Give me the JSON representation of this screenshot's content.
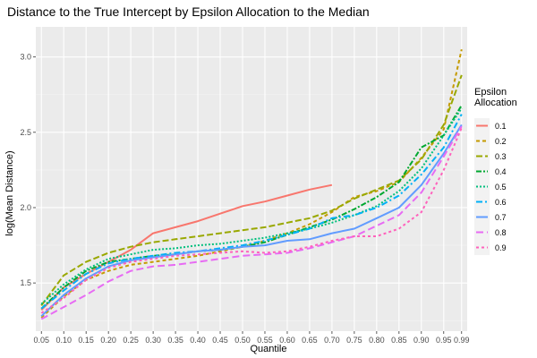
{
  "chart_data": {
    "type": "line",
    "title": "Distance to the True Intercept by Epsilon Allocation to the Median",
    "xlabel": "Quantile",
    "ylabel": "log(Mean Distance)",
    "ylim": [
      1.18,
      3.2
    ],
    "y_ticks": [
      1.5,
      2.0,
      2.5,
      3.0
    ],
    "y_tick_labels": [
      "1.5",
      "2.0",
      "2.5",
      "3.0"
    ],
    "x_tick_labels": [
      "0.05",
      "0.10",
      "0.15",
      "0.20",
      "0.25",
      "0.30",
      "0.35",
      "0.40",
      "0.45",
      "0.50",
      "0.55",
      "0.60",
      "0.65",
      "0.70",
      "0.75",
      "0.80",
      "0.85",
      "0.90",
      "0.95",
      "0.99"
    ],
    "background": "#ebebeb",
    "grid": true,
    "legend": {
      "title": "Epsilon\nAllocation",
      "placement": "right"
    },
    "series": [
      {
        "name": "0.1",
        "color": "#F8766D",
        "dash": "solid",
        "x": [
          0.05,
          0.1,
          0.15,
          0.2,
          0.25,
          0.3,
          0.35,
          0.4,
          0.45,
          0.5,
          0.55,
          0.6,
          0.65,
          0.7
        ],
        "y": [
          1.32,
          1.47,
          1.56,
          1.64,
          1.72,
          1.83,
          1.87,
          1.91,
          1.96,
          2.01,
          2.04,
          2.08,
          2.12,
          2.15
        ]
      },
      {
        "name": "0.2",
        "color": "#C49A00",
        "dash": "4,3",
        "x": [
          0.05,
          0.1,
          0.15,
          0.2,
          0.25,
          0.3,
          0.35,
          0.4,
          0.45,
          0.5,
          0.55,
          0.6,
          0.65,
          0.7,
          0.75,
          0.8,
          0.85,
          0.9,
          0.95,
          0.99
        ],
        "y": [
          1.27,
          1.41,
          1.52,
          1.58,
          1.62,
          1.64,
          1.66,
          1.68,
          1.71,
          1.74,
          1.78,
          1.83,
          1.89,
          1.97,
          2.07,
          2.11,
          2.17,
          2.33,
          2.52,
          3.05
        ]
      },
      {
        "name": "0.3",
        "color": "#99A800",
        "dash": "7,3",
        "x": [
          0.05,
          0.1,
          0.15,
          0.2,
          0.25,
          0.3,
          0.35,
          0.4,
          0.45,
          0.5,
          0.55,
          0.6,
          0.65,
          0.7,
          0.75,
          0.8,
          0.85,
          0.9,
          0.95,
          0.99
        ],
        "y": [
          1.35,
          1.55,
          1.64,
          1.7,
          1.74,
          1.77,
          1.79,
          1.81,
          1.83,
          1.85,
          1.87,
          1.9,
          1.93,
          1.98,
          2.06,
          2.12,
          2.18,
          2.32,
          2.55,
          2.88
        ]
      },
      {
        "name": "0.4",
        "color": "#00A830",
        "dash": "6,2,2,2",
        "x": [
          0.05,
          0.1,
          0.15,
          0.2,
          0.25,
          0.3,
          0.35,
          0.4,
          0.45,
          0.5,
          0.55,
          0.6,
          0.65,
          0.7,
          0.75,
          0.8,
          0.85,
          0.9,
          0.95,
          0.99
        ],
        "y": [
          1.33,
          1.47,
          1.58,
          1.64,
          1.66,
          1.68,
          1.69,
          1.71,
          1.72,
          1.74,
          1.77,
          1.82,
          1.87,
          1.92,
          1.99,
          2.07,
          2.17,
          2.4,
          2.48,
          2.68
        ]
      },
      {
        "name": "0.5",
        "color": "#00BF7D",
        "dash": "2,2",
        "x": [
          0.05,
          0.1,
          0.15,
          0.2,
          0.25,
          0.3,
          0.35,
          0.4,
          0.45,
          0.5,
          0.55,
          0.6,
          0.65,
          0.7,
          0.75,
          0.8,
          0.85,
          0.9,
          0.95,
          0.99
        ],
        "y": [
          1.36,
          1.49,
          1.59,
          1.66,
          1.69,
          1.72,
          1.73,
          1.75,
          1.76,
          1.78,
          1.8,
          1.83,
          1.86,
          1.9,
          1.95,
          2.01,
          2.11,
          2.26,
          2.48,
          2.66
        ]
      },
      {
        "name": "0.6",
        "color": "#00B0F6",
        "dash": "7,3,2,3",
        "x": [
          0.05,
          0.1,
          0.15,
          0.2,
          0.25,
          0.3,
          0.35,
          0.4,
          0.45,
          0.5,
          0.55,
          0.6,
          0.65,
          0.7,
          0.75,
          0.8,
          0.85,
          0.9,
          0.95,
          0.99
        ],
        "y": [
          1.33,
          1.45,
          1.56,
          1.63,
          1.66,
          1.68,
          1.7,
          1.71,
          1.73,
          1.75,
          1.78,
          1.82,
          1.86,
          1.93,
          1.95,
          2.0,
          2.08,
          2.22,
          2.4,
          2.62
        ]
      },
      {
        "name": "0.7",
        "color": "#619CFF",
        "dash": "solid",
        "x": [
          0.05,
          0.1,
          0.15,
          0.2,
          0.25,
          0.3,
          0.35,
          0.4,
          0.45,
          0.5,
          0.55,
          0.6,
          0.65,
          0.7,
          0.75,
          0.8,
          0.85,
          0.9,
          0.95,
          0.99
        ],
        "y": [
          1.28,
          1.42,
          1.53,
          1.61,
          1.65,
          1.67,
          1.69,
          1.71,
          1.72,
          1.74,
          1.75,
          1.78,
          1.79,
          1.83,
          1.86,
          1.93,
          2.0,
          2.15,
          2.36,
          2.55
        ]
      },
      {
        "name": "0.8",
        "color": "#E76BF3",
        "dash": "8,4",
        "x": [
          0.05,
          0.1,
          0.15,
          0.2,
          0.25,
          0.3,
          0.35,
          0.4,
          0.45,
          0.5,
          0.55,
          0.6,
          0.65,
          0.7,
          0.75,
          0.8,
          0.85,
          0.9,
          0.95,
          0.99
        ],
        "y": [
          1.26,
          1.34,
          1.42,
          1.51,
          1.58,
          1.61,
          1.62,
          1.64,
          1.66,
          1.68,
          1.69,
          1.7,
          1.73,
          1.77,
          1.81,
          1.88,
          1.95,
          2.1,
          2.34,
          2.54
        ]
      },
      {
        "name": "0.9",
        "color": "#FF62BC",
        "dash": "3,3",
        "x": [
          0.05,
          0.1,
          0.15,
          0.2,
          0.25,
          0.3,
          0.35,
          0.4,
          0.45,
          0.5,
          0.55,
          0.6,
          0.65,
          0.7,
          0.75,
          0.8,
          0.85,
          0.9,
          0.95,
          0.99
        ],
        "y": [
          1.3,
          1.4,
          1.52,
          1.6,
          1.64,
          1.66,
          1.68,
          1.69,
          1.7,
          1.71,
          1.7,
          1.71,
          1.74,
          1.78,
          1.81,
          1.81,
          1.86,
          1.97,
          2.25,
          2.53
        ]
      }
    ]
  }
}
